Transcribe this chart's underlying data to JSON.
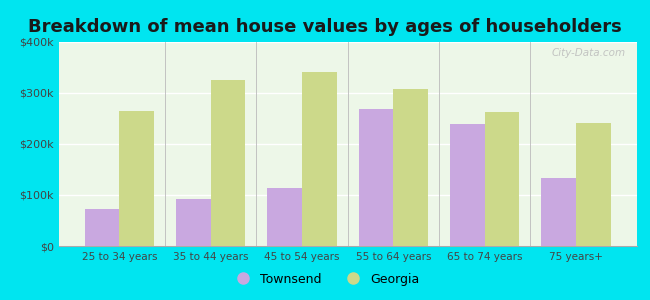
{
  "title": "Breakdown of mean house values by ages of householders",
  "categories": [
    "25 to 34 years",
    "35 to 44 years",
    "45 to 54 years",
    "55 to 64 years",
    "65 to 74 years",
    "75 years+"
  ],
  "townsend_values": [
    72000,
    93000,
    113000,
    268000,
    240000,
    133000
  ],
  "georgia_values": [
    265000,
    325000,
    342000,
    308000,
    263000,
    242000
  ],
  "townsend_color": "#c9a8e0",
  "georgia_color": "#ccd98a",
  "background_outer": "#00e5f0",
  "background_inner": "#edf7e8",
  "title_fontsize": 13,
  "legend_labels": [
    "Townsend",
    "Georgia"
  ],
  "ymax": 400000,
  "yticks": [
    0,
    100000,
    200000,
    300000,
    400000
  ],
  "ytick_labels": [
    "$0",
    "$100k",
    "$200k",
    "$300k",
    "$400k"
  ],
  "watermark_text": "City-Data.com"
}
